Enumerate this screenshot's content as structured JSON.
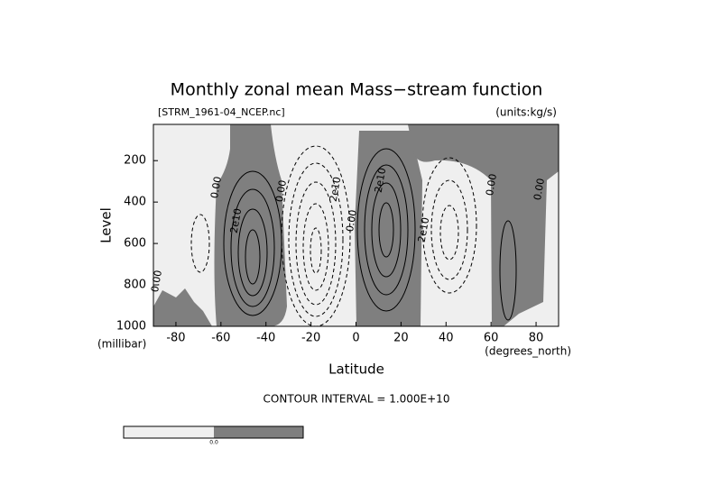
{
  "chart_data": {
    "type": "contour",
    "title": "Monthly zonal mean Mass−stream function",
    "subtitle": "[STRM_1961-04_NCEP.nc]",
    "units_label": "(units:kg/s)",
    "y_label": "Level",
    "y_unit": "(millibar)",
    "x_label": "Latitude",
    "x_unit": "(degrees_north)",
    "contour_interval_text": "CONTOUR INTERVAL = 1.000E+10",
    "contour_labels": [
      "0.00",
      "2e10",
      "0.00",
      "2e10",
      "0.00",
      "2e10",
      "2e10",
      "0.00",
      "0.00",
      "0.00"
    ],
    "colorbar_label": "0.0",
    "xlim": [
      -90,
      90
    ],
    "xticks": [
      -80,
      -60,
      -40,
      -20,
      0,
      20,
      40,
      60,
      80
    ],
    "ylim": [
      1000,
      25
    ],
    "yticks": [
      200,
      400,
      600,
      800,
      1000
    ],
    "positive_color": "#7f7f7f",
    "negative_color": "#efefef"
  }
}
